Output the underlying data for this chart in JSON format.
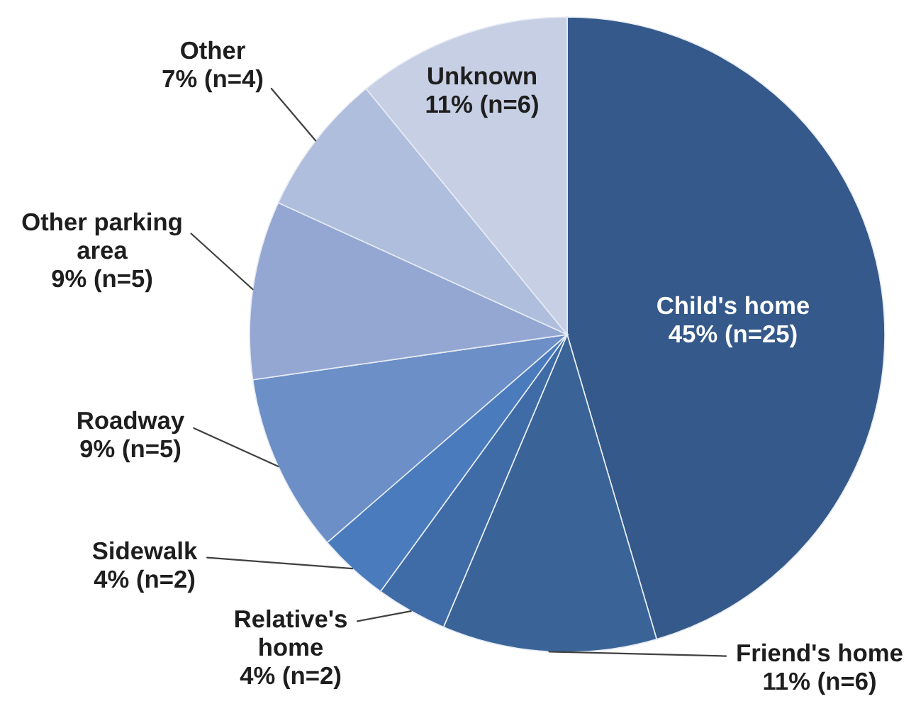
{
  "chart_data": {
    "type": "pie",
    "categories": [
      "Child's home",
      "Friend's home",
      "Relative's\nhome",
      "Sidewalk",
      "Roadway",
      "Other parking\narea",
      "Other",
      "Unknown"
    ],
    "values": [
      25,
      6,
      2,
      2,
      5,
      5,
      4,
      6
    ],
    "value_labels": [
      "45% (n=25)",
      "11% (n=6)",
      "4% (n=2)",
      "4% (n=2)",
      "9% (n=5)",
      "9% (n=5)",
      "7% (n=4)",
      "11% (n=6)"
    ],
    "colors": [
      "#34598a",
      "#3a6498",
      "#3f6ca6",
      "#4a7bbd",
      "#6b8fc6",
      "#94a6d2",
      "#b0bedd",
      "#c6cfe4"
    ]
  }
}
